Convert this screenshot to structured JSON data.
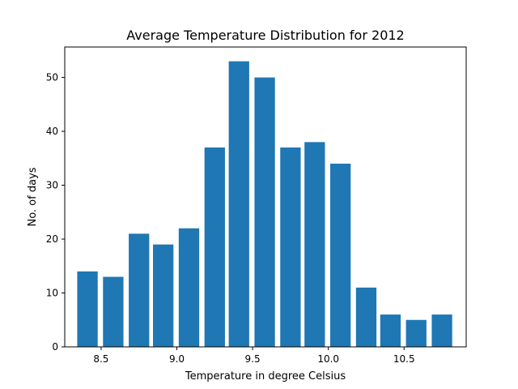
{
  "chart_data": {
    "type": "bar",
    "title": "Average Temperature Distribution for 2012",
    "xlabel": "Temperature in degree Celsius",
    "ylabel": "No. of days",
    "bar_color": "#1f77b4",
    "x": [
      8.41,
      8.58,
      8.75,
      8.91,
      9.08,
      9.25,
      9.41,
      9.58,
      9.75,
      9.91,
      10.08,
      10.25,
      10.41,
      10.58,
      10.75
    ],
    "values": [
      14,
      13,
      21,
      19,
      22,
      37,
      53,
      50,
      37,
      38,
      34,
      11,
      6,
      5,
      6
    ],
    "bar_width_data": 0.135,
    "xlim": [
      8.26,
      10.91
    ],
    "ylim": [
      0,
      55.65
    ],
    "xticks": [
      8.5,
      9.0,
      9.5,
      10.0,
      10.5
    ],
    "xtick_labels": [
      "8.5",
      "9.0",
      "9.5",
      "10.0",
      "10.5"
    ],
    "yticks": [
      0,
      10,
      20,
      30,
      40,
      50
    ],
    "ytick_labels": [
      "0",
      "10",
      "20",
      "30",
      "40",
      "50"
    ],
    "grid": false,
    "legend": "none"
  }
}
